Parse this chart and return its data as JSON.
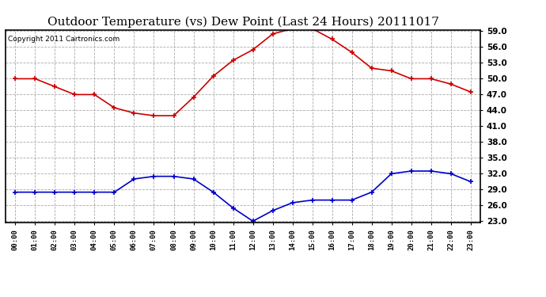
{
  "title": "Outdoor Temperature (vs) Dew Point (Last 24 Hours) 20111017",
  "copyright": "Copyright 2011 Cartronics.com",
  "hours": [
    "00:00",
    "01:00",
    "02:00",
    "03:00",
    "04:00",
    "05:00",
    "06:00",
    "07:00",
    "08:00",
    "09:00",
    "10:00",
    "11:00",
    "12:00",
    "13:00",
    "14:00",
    "15:00",
    "16:00",
    "17:00",
    "18:00",
    "19:00",
    "20:00",
    "21:00",
    "22:00",
    "23:00"
  ],
  "temp": [
    50.0,
    50.0,
    48.5,
    47.0,
    47.0,
    44.5,
    43.5,
    43.0,
    43.0,
    46.5,
    50.5,
    53.5,
    55.5,
    58.5,
    59.5,
    59.5,
    57.5,
    55.0,
    52.0,
    51.5,
    50.0,
    50.0,
    49.0,
    47.5
  ],
  "dew": [
    28.5,
    28.5,
    28.5,
    28.5,
    28.5,
    28.5,
    31.0,
    31.5,
    31.5,
    31.0,
    28.5,
    25.5,
    23.0,
    25.0,
    26.5,
    27.0,
    27.0,
    27.0,
    28.5,
    32.0,
    32.5,
    32.5,
    32.0,
    30.5
  ],
  "temp_color": "#cc0000",
  "dew_color": "#0000cc",
  "bg_color": "#ffffff",
  "plot_bg": "#ffffff",
  "ylim_min": 23.0,
  "ylim_max": 59.0,
  "yticks": [
    23.0,
    26.0,
    29.0,
    32.0,
    35.0,
    38.0,
    41.0,
    44.0,
    47.0,
    50.0,
    53.0,
    56.0,
    59.0
  ],
  "grid_color": "#aaaaaa",
  "title_fontsize": 11,
  "copyright_fontsize": 6.5
}
